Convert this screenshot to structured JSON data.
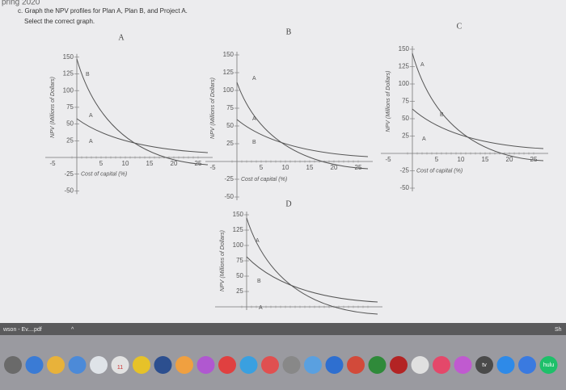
{
  "header": {
    "term": "pring 2020",
    "question": "c. Graph the NPV profiles for Plan A, Plan B, and Project A.",
    "instruction": "Select the correct graph."
  },
  "graphs": [
    {
      "label": "A",
      "y_axis_label": "NPV (Millions of Dollars)",
      "x_axis_label": "Cost of capital (%)",
      "y_ticks": [
        "150",
        "125",
        "100",
        "75",
        "50",
        "25",
        "-25",
        "-50"
      ],
      "x_ticks": [
        "-5",
        "5",
        "10",
        "15",
        "20",
        "25"
      ],
      "curve_labels": [
        "B",
        "A",
        "A"
      ]
    },
    {
      "label": "B",
      "y_axis_label": "NPV (Millions of Dollars)",
      "x_axis_label": "Cost of capital (%)",
      "y_ticks": [
        "150",
        "125",
        "100",
        "75",
        "50",
        "25",
        "-25",
        "-50"
      ],
      "x_ticks": [
        "-5",
        "5",
        "10",
        "15",
        "20",
        "25"
      ],
      "curve_labels": [
        "A",
        "A",
        "B"
      ]
    },
    {
      "label": "C",
      "y_axis_label": "NPV (Millions of Dollars)",
      "x_axis_label": "Cost of capital (%)",
      "y_ticks": [
        "150",
        "125",
        "100",
        "75",
        "50",
        "25",
        "-25",
        "-50"
      ],
      "x_ticks": [
        "-5",
        "5",
        "10",
        "15",
        "20",
        "25"
      ],
      "curve_labels": [
        "A",
        "B",
        "A"
      ]
    },
    {
      "label": "D",
      "y_axis_label": "NPV (Millions of Dollars)",
      "y_ticks": [
        "150",
        "125",
        "100",
        "75",
        "50",
        "25"
      ],
      "curve_labels": [
        "A",
        "B",
        "A"
      ]
    }
  ],
  "taskbar": {
    "download": "wson - Ev....pdf",
    "show_all": "Sh"
  },
  "dock": {
    "calendar_day": "11",
    "tv": "tv",
    "hulu": "hulu"
  }
}
